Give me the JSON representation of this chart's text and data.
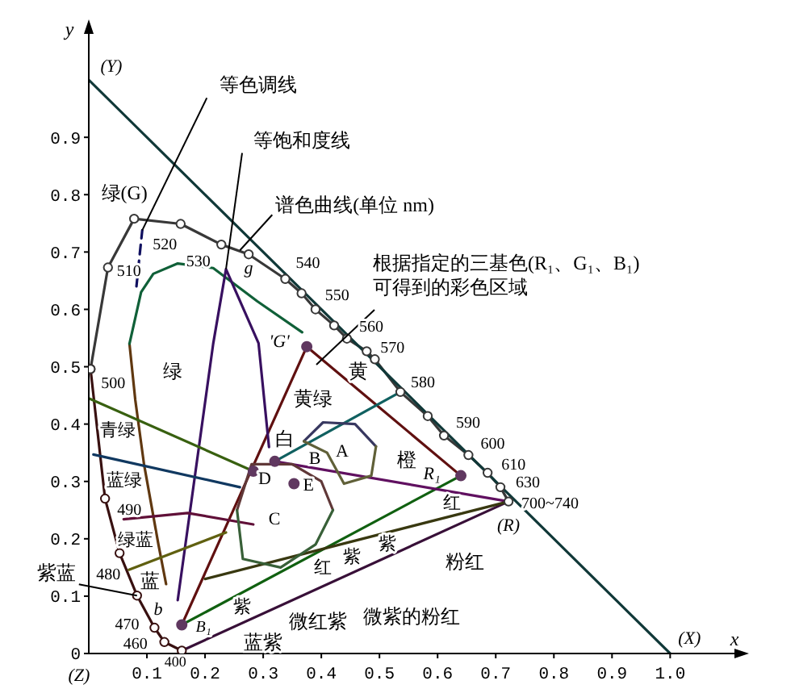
{
  "chart_data": {
    "type": "line",
    "xlabel": "x",
    "ylabel": "y",
    "xlim": [
      0,
      1.13
    ],
    "ylim": [
      0,
      1.1
    ],
    "xticks": [
      0.1,
      0.2,
      0.3,
      0.4,
      0.5,
      0.6,
      0.7,
      0.8,
      0.9,
      {
        "value": 1,
        "label": "1.0"
      }
    ],
    "yticks": [
      0,
      0.1,
      0.2,
      0.3,
      0.4,
      0.5,
      0.6,
      0.7,
      0.8,
      0.9
    ],
    "series": [
      {
        "color": "#381010",
        "marker": "circle",
        "x": [
          0.003,
          0.028,
          0.053,
          0.083,
          0.113,
          0.13,
          0.16
        ],
        "values": [
          0.496,
          0.27,
          0.175,
          0.101,
          0.045,
          0.02,
          0.005
        ]
      },
      {
        "color": "#383838",
        "marker": "circle",
        "x": [
          0.003,
          0.033,
          0.078,
          0.158,
          0.228,
          0.275,
          0.338,
          0.366,
          0.39,
          0.422,
          0.444,
          0.478,
          0.492,
          0.536,
          0.583,
          0.611,
          0.653,
          0.686,
          0.708,
          0.722
        ],
        "values": [
          0.496,
          0.673,
          0.758,
          0.749,
          0.713,
          0.696,
          0.653,
          0.628,
          0.6,
          0.572,
          0.549,
          0.527,
          0.513,
          0.456,
          0.414,
          0.38,
          0.346,
          0.315,
          0.29,
          0.265
        ]
      },
      {
        "color": "#381038",
        "x": [
          0.16,
          0.722
        ],
        "values": [
          0.005,
          0.265
        ]
      },
      {
        "color": "#103838",
        "x": [
          0,
          1
        ],
        "values": [
          1,
          0
        ]
      },
      {
        "color": "#601010",
        "x": [
          0.16,
          0.375,
          0.64
        ],
        "values": [
          0.05,
          0.535,
          0.31
        ]
      },
      {
        "color": "#106010",
        "x": [
          0.16,
          0.64
        ],
        "values": [
          0.05,
          0.31
        ]
      },
      {
        "color": "#101060",
        "line_style": "dashed",
        "x": [
          0.082,
          0.087,
          0.092
        ],
        "values": [
          0.64,
          0.69,
          0.738
        ]
      },
      {
        "color": "#603810",
        "x": [
          0.07,
          0.08,
          0.095,
          0.12,
          0.133
        ],
        "values": [
          0.54,
          0.442,
          0.33,
          0.189,
          0.121
        ]
      },
      {
        "color": "#106038",
        "x": [
          0.07,
          0.09,
          0.111,
          0.153,
          0.214,
          0.29,
          0.367
        ],
        "values": [
          0.54,
          0.63,
          0.662,
          0.68,
          0.672,
          0.614,
          0.56
        ]
      },
      {
        "color": "#381060",
        "x": [
          0.153,
          0.214,
          0.236,
          0.292,
          0.31
        ],
        "values": [
          0.093,
          0.54,
          0.67,
          0.541,
          0.36
        ]
      },
      {
        "color": "#386010",
        "x": [
          0,
          0.283
        ],
        "values": [
          0.445,
          0.318
        ]
      },
      {
        "color": "#103860",
        "x": [
          0.008,
          0.26
        ],
        "values": [
          0.347,
          0.29
        ]
      },
      {
        "color": "#601038",
        "x": [
          0.06,
          0.17,
          0.283
        ],
        "values": [
          0.234,
          0.245,
          0.225
        ]
      },
      {
        "color": "#606010",
        "x": [
          0.069,
          0.236
        ],
        "values": [
          0.146,
          0.211
        ]
      },
      {
        "color": "#106060",
        "x": [
          0.32,
          0.536
        ],
        "values": [
          0.335,
          0.456
        ]
      },
      {
        "color": "#601060",
        "x": [
          0.32,
          0.722
        ],
        "values": [
          0.335,
          0.265
        ]
      },
      {
        "color": "#383810",
        "x": [
          0.2,
          0.722
        ],
        "values": [
          0.13,
          0.265
        ]
      },
      {
        "color": "#603838",
        "x": [
          0.255,
          0.28,
          0.35,
          0.4,
          0.42
        ],
        "values": [
          0.25,
          0.33,
          0.33,
          0.3,
          0.25
        ]
      },
      {
        "color": "#386038",
        "x": [
          0.255,
          0.265,
          0.33,
          0.39,
          0.42
        ],
        "values": [
          0.25,
          0.165,
          0.15,
          0.19,
          0.25
        ]
      },
      {
        "color": "#383860",
        "x": [
          0.37,
          0.403,
          0.458,
          0.494
        ],
        "values": [
          0.37,
          0.403,
          0.4,
          0.361
        ]
      },
      {
        "color": "#606038",
        "x": [
          0.37,
          0.41,
          0.439,
          0.486,
          0.494
        ],
        "values": [
          0.37,
          0.35,
          0.296,
          0.31,
          0.361
        ]
      },
      {
        "type": "scatter",
        "color": "#603860",
        "marker": "circle",
        "x": [
          0.283,
          0.32,
          0.353,
          0.16,
          0.64,
          0.375
        ],
        "values": [
          0.318,
          0.335,
          0.296,
          0.05,
          0.31,
          0.535
        ]
      }
    ],
    "annotations": [
      {
        "text": "等色调线",
        "x": 0.092,
        "y": 0.738
      },
      {
        "text": "等饱和度线",
        "x": 0.236,
        "y": 0.67
      },
      {
        "text": "谱色曲线(单位 nm)",
        "x": 0.26,
        "y": 0.703
      },
      "根据指定的三基色(R₁、G₁、B₁)\n可得到的彩色区域",
      {
        "text": "(Y)",
        "x": 0,
        "y": 1
      },
      {
        "text": "(X)",
        "x": 1,
        "y": 0
      },
      "(Z)",
      {
        "text": "(R)",
        "x": 0.722,
        "y": 0.265
      },
      {
        "text": "绿(G)",
        "x": 0.078,
        "y": 0.758
      },
      {
        "text": "g",
        "x": 0.275,
        "y": 0.696
      },
      {
        "text": "'G'",
        "x": 0.375,
        "y": 0.535
      },
      {
        "text": "R₁",
        "x": 0.64,
        "y": 0.31
      },
      {
        "text": "B₁",
        "x": 0.16,
        "y": 0.05
      },
      {
        "text": "D",
        "x": 0.283,
        "y": 0.318
      },
      {
        "text": "白",
        "x": 0.32,
        "y": 0.335
      },
      {
        "text": "E",
        "x": 0.353,
        "y": 0.296
      },
      "A",
      "B",
      "C",
      "b",
      {
        "text": "紫蓝",
        "x": 0.083,
        "y": 0.101
      },
      "绿",
      "青绿",
      "蓝绿",
      "绿蓝",
      "蓝",
      "黄绿",
      "黄",
      "橙",
      "红",
      "粉红",
      "红",
      "紫",
      "紫",
      "紫",
      "微红紫",
      "蓝紫",
      "微紫的粉红",
      {
        "text": "400",
        "x": 0.16,
        "y": 0.005
      },
      {
        "text": "460",
        "x": 0.13,
        "y": 0.02
      },
      {
        "text": "470",
        "x": 0.113,
        "y": 0.045
      },
      {
        "text": "480",
        "x": 0.053,
        "y": 0.175
      },
      {
        "text": "490",
        "x": 0.028,
        "y": 0.27
      },
      {
        "text": "500",
        "x": 0.003,
        "y": 0.496
      },
      {
        "text": "510",
        "x": 0.033,
        "y": 0.673
      },
      {
        "text": "520",
        "x": 0.078,
        "y": 0.758
      },
      {
        "text": "530",
        "x": 0.158,
        "y": 0.749
      },
      {
        "text": "540",
        "x": 0.338,
        "y": 0.653
      },
      {
        "text": "550",
        "x": 0.366,
        "y": 0.628
      },
      {
        "text": "560",
        "x": 0.422,
        "y": 0.572
      },
      {
        "text": "570",
        "x": 0.478,
        "y": 0.527
      },
      {
        "text": "580",
        "x": 0.536,
        "y": 0.456
      },
      {
        "text": "590",
        "x": 0.583,
        "y": 0.414
      },
      {
        "text": "600",
        "x": 0.653,
        "y": 0.346
      },
      {
        "text": "610",
        "x": 0.686,
        "y": 0.315
      },
      {
        "text": "630",
        "x": 0.708,
        "y": 0.29
      },
      {
        "text": "700~740",
        "x": 0.722,
        "y": 0.265
      }
    ]
  }
}
